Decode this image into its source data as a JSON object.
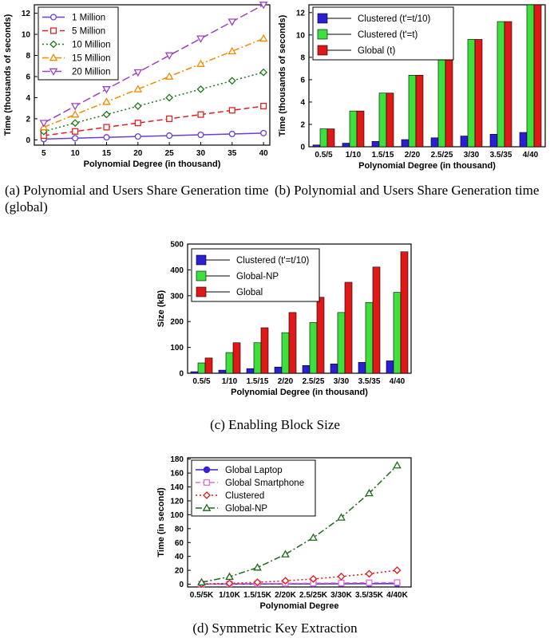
{
  "chart_data": [
    {
      "id": "a",
      "type": "line",
      "caption": "(a) Polynomial and Users Share Generation time (global)",
      "xlabel": "Polynomial Degree (in thousand)",
      "ylabel": "Time (thousands of seconds)",
      "x": [
        5,
        10,
        15,
        20,
        25,
        30,
        35,
        40
      ],
      "xlim": [
        3.5,
        41
      ],
      "ylim": [
        -0.5,
        12.8
      ],
      "yticks": [
        0,
        2,
        4,
        6,
        8,
        10,
        12
      ],
      "legend_position": "top-left",
      "series": [
        {
          "name": "1 Million",
          "color": "#6a3fd0",
          "dash": "",
          "marker": "circle",
          "values": [
            0.08,
            0.16,
            0.24,
            0.32,
            0.4,
            0.48,
            0.56,
            0.64
          ]
        },
        {
          "name": "5 Million",
          "color": "#e02020",
          "dash": "7,4",
          "marker": "square",
          "values": [
            0.4,
            0.8,
            1.2,
            1.6,
            2.0,
            2.4,
            2.8,
            3.2
          ]
        },
        {
          "name": "10 Million",
          "color": "#1a7a1a",
          "dash": "2,3",
          "marker": "diamond",
          "values": [
            0.8,
            1.6,
            2.4,
            3.2,
            4.0,
            4.8,
            5.6,
            6.4
          ]
        },
        {
          "name": "15 Million",
          "color": "#f08c00",
          "dash": "8,3,2,3",
          "marker": "triangle",
          "values": [
            1.2,
            2.4,
            3.6,
            4.8,
            6.0,
            7.2,
            8.4,
            9.6
          ]
        },
        {
          "name": "20 Million",
          "color": "#a040c0",
          "dash": "10,4",
          "marker": "triangle-down",
          "values": [
            1.6,
            3.2,
            4.8,
            6.4,
            8.0,
            9.6,
            11.2,
            12.8
          ]
        }
      ]
    },
    {
      "id": "b",
      "type": "bar",
      "caption": "(b) Polynomial and Users Share Generation time",
      "xlabel": "Polynomial Degree (in thousand)",
      "ylabel": "Time (thousands of seconds)",
      "categories": [
        "0.5/5",
        "1/10",
        "1.5/15",
        "2/20",
        "2.5/25",
        "3/30",
        "3.5/35",
        "4/40"
      ],
      "ylim": [
        0,
        12.7
      ],
      "yticks": [
        0,
        2,
        4,
        6,
        8,
        10,
        12
      ],
      "legend_position": "top-left",
      "series": [
        {
          "name": "Clustered (t'=t/10)",
          "color": "#2b1fd6",
          "values": [
            0.16,
            0.32,
            0.48,
            0.64,
            0.8,
            0.96,
            1.12,
            1.28
          ]
        },
        {
          "name": "Clustered (t'=t)",
          "color": "#3ee03e",
          "values": [
            1.6,
            3.2,
            4.8,
            6.4,
            8.0,
            9.6,
            11.2,
            12.8
          ]
        },
        {
          "name": "Global (t)",
          "color": "#e01818",
          "values": [
            1.6,
            3.2,
            4.8,
            6.4,
            8.0,
            9.6,
            11.2,
            12.8
          ]
        }
      ]
    },
    {
      "id": "c",
      "type": "bar",
      "caption": "(c) Enabling Block Size",
      "xlabel": "Polynomial Degree (in thousand)",
      "ylabel": "Size (kB)",
      "categories": [
        "0.5/5",
        "1/10",
        "1.5/15",
        "2/20",
        "2.5/25",
        "3/30",
        "3.5/35",
        "4/40"
      ],
      "ylim": [
        0,
        500
      ],
      "yticks": [
        0,
        100,
        200,
        300,
        400,
        500
      ],
      "legend_position": "top-left",
      "series": [
        {
          "name": "Clustered (t'=t/10)",
          "color": "#2b1fd6",
          "values": [
            6,
            12,
            18,
            24,
            30,
            36,
            42,
            48
          ]
        },
        {
          "name": "Global-NP",
          "color": "#3ee03e",
          "values": [
            40,
            80,
            118,
            157,
            196,
            235,
            274,
            313
          ]
        },
        {
          "name": "Global",
          "color": "#e01818",
          "values": [
            59,
            118,
            176,
            235,
            294,
            352,
            411,
            470
          ]
        }
      ]
    },
    {
      "id": "d",
      "type": "line",
      "caption": "(d) Symmetric Key Extraction",
      "xlabel": "Polynomial Degree",
      "ylabel": "Time (in second)",
      "categories": [
        "0.5/5K",
        "1/10K",
        "1.5/15K",
        "2/20K",
        "2.5/25K",
        "3/30K",
        "3.5/35K",
        "4/40K"
      ],
      "ylim": [
        -4,
        182
      ],
      "yticks": [
        0,
        20,
        40,
        60,
        80,
        100,
        120,
        140,
        160,
        180
      ],
      "legend_position": "top-left",
      "series": [
        {
          "name": "Global Laptop",
          "color": "#3a1fd6",
          "dash": "",
          "marker": "filled-circle",
          "values": [
            0.1,
            0.2,
            0.3,
            0.4,
            0.5,
            0.6,
            0.7,
            0.8
          ]
        },
        {
          "name": "Global Smartphone",
          "color": "#e070d0",
          "dash": "6,3",
          "marker": "square",
          "values": [
            0.3,
            0.6,
            0.9,
            1.2,
            1.5,
            1.8,
            2.1,
            2.4
          ]
        },
        {
          "name": "Clustered",
          "color": "#e01818",
          "dash": "2,3",
          "marker": "diamond",
          "values": [
            0.3,
            1.2,
            2.7,
            4.9,
            7.6,
            11,
            15,
            20
          ]
        },
        {
          "name": "Global-NP",
          "color": "#1a6a1a",
          "dash": "8,3,2,3",
          "marker": "triangle",
          "values": [
            2.7,
            10.7,
            24,
            43,
            67,
            96,
            131,
            171
          ]
        }
      ]
    }
  ]
}
